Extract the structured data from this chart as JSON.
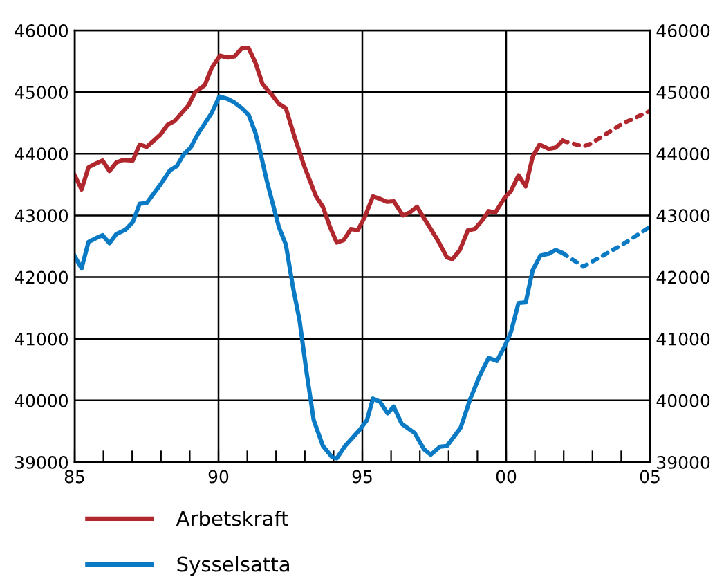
{
  "chart_data": {
    "type": "line",
    "xlim": [
      1985,
      2005
    ],
    "ylim": [
      39000,
      46000
    ],
    "yticks": [
      39000,
      40000,
      41000,
      42000,
      43000,
      44000,
      45000,
      46000
    ],
    "y2lim": [
      39000,
      46000
    ],
    "y2ticks": [
      39000,
      40000,
      41000,
      42000,
      43000,
      44000,
      45000,
      46000
    ],
    "xticks": [
      {
        "value": 1985,
        "label": "85"
      },
      {
        "value": 1986,
        "label": null
      },
      {
        "value": 1987,
        "label": null
      },
      {
        "value": 1988,
        "label": null
      },
      {
        "value": 1989,
        "label": null
      },
      {
        "value": 1990,
        "label": "90"
      },
      {
        "value": 1991,
        "label": null
      },
      {
        "value": 1992,
        "label": null
      },
      {
        "value": 1993,
        "label": null
      },
      {
        "value": 1994,
        "label": null
      },
      {
        "value": 1995,
        "label": "95"
      },
      {
        "value": 1996,
        "label": null
      },
      {
        "value": 1997,
        "label": null
      },
      {
        "value": 1998,
        "label": null
      },
      {
        "value": 1999,
        "label": null
      },
      {
        "value": 2000,
        "label": "00"
      },
      {
        "value": 2001,
        "label": null
      },
      {
        "value": 2002,
        "label": null
      },
      {
        "value": 2003,
        "label": null
      },
      {
        "value": 2004,
        "label": null
      },
      {
        "value": 2005,
        "label": "05"
      }
    ],
    "grid": true,
    "legend": "bottom",
    "marker": "none",
    "series": [
      {
        "name": "Arbetskraft",
        "color": "#b0282e",
        "line_style": "solid",
        "x": [
          1985.0,
          1985.24,
          1985.48,
          1985.73,
          1985.97,
          1986.21,
          1986.45,
          1986.69,
          1987.02,
          1987.26,
          1987.5,
          1987.98,
          1988.23,
          1988.47,
          1988.95,
          1989.19,
          1989.52,
          1989.76,
          1990.05,
          1990.32,
          1990.56,
          1990.81,
          1991.05,
          1991.29,
          1991.53,
          1991.85,
          1992.1,
          1992.34,
          1992.66,
          1992.98,
          1993.39,
          1993.63,
          1993.87,
          1994.11,
          1994.35,
          1994.6,
          1994.84,
          1995.08,
          1995.37,
          1995.61,
          1995.85,
          1996.09,
          1996.41,
          1996.65,
          1996.9,
          1997.22,
          1997.62,
          1997.94,
          1998.13,
          1998.39,
          1998.67,
          1998.91,
          1999.15,
          1999.39,
          1999.63,
          1999.95,
          2000.16,
          2000.43,
          2000.68,
          2000.92,
          2001.16,
          2001.48,
          2001.72,
          2001.96
        ],
        "values": [
          43650,
          43420,
          43780,
          43840,
          43890,
          43720,
          43860,
          43900,
          43890,
          44150,
          44110,
          44310,
          44470,
          44530,
          44780,
          45000,
          45110,
          45390,
          45590,
          45560,
          45580,
          45710,
          45710,
          45470,
          45130,
          44960,
          44810,
          44740,
          44250,
          43800,
          43310,
          43140,
          42820,
          42560,
          42600,
          42780,
          42760,
          42970,
          43310,
          43270,
          43220,
          43230,
          43000,
          43050,
          43140,
          42900,
          42600,
          42320,
          42290,
          42440,
          42760,
          42780,
          42910,
          43070,
          43050,
          43290,
          43390,
          43650,
          43470,
          43950,
          44150,
          44080,
          44100,
          44210
        ]
      },
      {
        "color": "#b0282e",
        "line_style": "dotted",
        "x": [
          2001.96,
          2002.68,
          2002.92,
          2004.05,
          2004.98
        ],
        "values": [
          44210,
          44120,
          44160,
          44490,
          44690
        ]
      },
      {
        "name": "Sysselsatta",
        "color": "#0a7ac4",
        "line_style": "solid",
        "x": [
          1985.0,
          1985.24,
          1985.48,
          1985.73,
          1985.97,
          1986.21,
          1986.45,
          1986.77,
          1987.02,
          1987.26,
          1987.5,
          1987.98,
          1988.31,
          1988.55,
          1988.79,
          1989.03,
          1989.27,
          1989.76,
          1990.03,
          1990.32,
          1990.56,
          1990.81,
          1991.05,
          1991.29,
          1991.45,
          1991.69,
          1992.1,
          1992.34,
          1992.58,
          1992.82,
          1993.06,
          1993.31,
          1993.63,
          1993.95,
          1994.11,
          1994.4,
          1994.92,
          1995.16,
          1995.37,
          1995.61,
          1995.88,
          1996.09,
          1996.37,
          1996.82,
          1997.14,
          1997.38,
          1997.7,
          1997.94,
          1998.42,
          1998.74,
          1999.07,
          1999.39,
          1999.68,
          1999.95,
          2000.16,
          2000.43,
          2000.68,
          2000.92,
          2001.19,
          2001.48,
          2001.72,
          2001.96
        ],
        "values": [
          42340,
          42140,
          42570,
          42630,
          42680,
          42550,
          42700,
          42770,
          42890,
          43190,
          43200,
          43500,
          43730,
          43800,
          43990,
          44100,
          44310,
          44660,
          44930,
          44890,
          44830,
          44740,
          44630,
          44330,
          44030,
          43540,
          42810,
          42530,
          41860,
          41290,
          40460,
          39680,
          39260,
          39080,
          39060,
          39260,
          39530,
          39680,
          40030,
          39980,
          39790,
          39900,
          39620,
          39470,
          39210,
          39120,
          39250,
          39260,
          39560,
          40010,
          40390,
          40690,
          40640,
          40880,
          41100,
          41580,
          41590,
          42110,
          42350,
          42380,
          42440,
          42390
        ]
      },
      {
        "color": "#0a7ac4",
        "line_style": "dotted",
        "x": [
          2001.96,
          2002.68,
          2004.05,
          2004.98
        ],
        "values": [
          42390,
          42170,
          42530,
          42810
        ]
      }
    ]
  }
}
